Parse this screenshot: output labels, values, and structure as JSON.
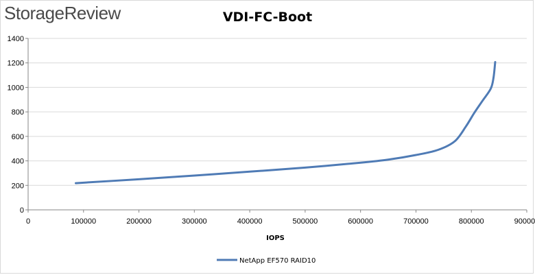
{
  "brand": {
    "logo_text": "StorageReview"
  },
  "chart_data": {
    "type": "line",
    "title": "VDI-FC-Boot",
    "xlabel": "IOPS",
    "ylabel": "",
    "xlim": [
      0,
      900000
    ],
    "ylim": [
      0,
      1400
    ],
    "x_ticks": [
      0,
      100000,
      200000,
      300000,
      400000,
      500000,
      600000,
      700000,
      800000,
      900000
    ],
    "y_ticks": [
      0,
      200,
      400,
      600,
      800,
      1000,
      1200,
      1400
    ],
    "grid": "horizontal",
    "legend_position": "bottom",
    "series": [
      {
        "name": "NetApp EF570 RAID10",
        "color": "#4f7bb5",
        "points": [
          [
            86000,
            218
          ],
          [
            200000,
            250
          ],
          [
            300000,
            280
          ],
          [
            400000,
            312
          ],
          [
            500000,
            345
          ],
          [
            600000,
            385
          ],
          [
            650000,
            410
          ],
          [
            700000,
            448
          ],
          [
            740000,
            490
          ],
          [
            770000,
            560
          ],
          [
            790000,
            680
          ],
          [
            805000,
            790
          ],
          [
            820000,
            890
          ],
          [
            835000,
            990
          ],
          [
            840000,
            1080
          ],
          [
            843000,
            1207
          ]
        ]
      }
    ]
  }
}
